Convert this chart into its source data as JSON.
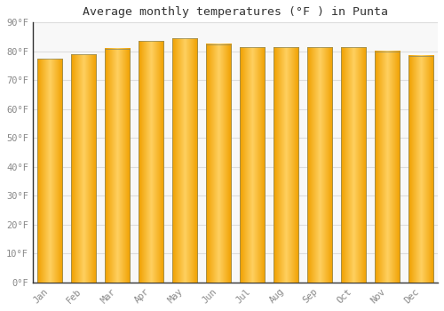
{
  "title": "Average monthly temperatures (°F ) in Punta",
  "months": [
    "Jan",
    "Feb",
    "Mar",
    "Apr",
    "May",
    "Jun",
    "Jul",
    "Aug",
    "Sep",
    "Oct",
    "Nov",
    "Dec"
  ],
  "values": [
    77.5,
    79.0,
    81.0,
    83.5,
    84.5,
    82.5,
    81.5,
    81.5,
    81.5,
    81.5,
    80.0,
    78.5
  ],
  "bar_color_center": "#FFD060",
  "bar_color_edge": "#F0A000",
  "background_color": "#FFFFFF",
  "plot_bg_color": "#F8F8F8",
  "grid_color": "#DDDDDD",
  "spine_color": "#666666",
  "ylim": [
    0,
    90
  ],
  "yticks": [
    0,
    10,
    20,
    30,
    40,
    50,
    60,
    70,
    80,
    90
  ],
  "ytick_labels": [
    "0°F",
    "10°F",
    "20°F",
    "30°F",
    "40°F",
    "50°F",
    "60°F",
    "70°F",
    "80°F",
    "90°F"
  ],
  "title_fontsize": 9.5,
  "tick_fontsize": 7.5,
  "font_family": "monospace",
  "bar_width": 0.75,
  "bar_edge_color": "#888866",
  "bar_edge_linewidth": 0.5
}
